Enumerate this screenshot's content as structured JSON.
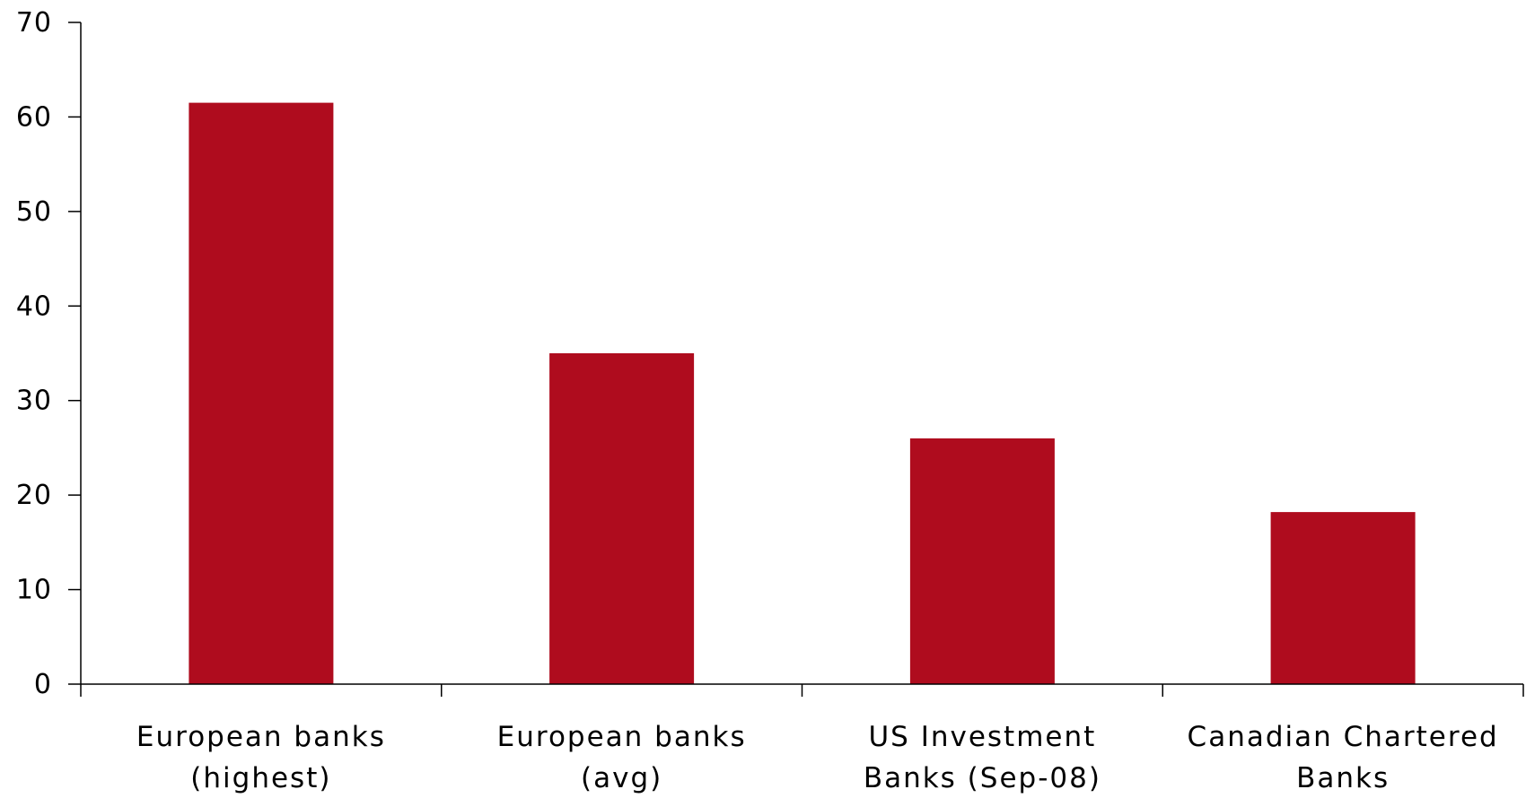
{
  "chart_data": {
    "type": "bar",
    "categories": [
      [
        "European banks",
        "(highest)"
      ],
      [
        "European banks",
        "(avg)"
      ],
      [
        "US Investment",
        "Banks (Sep-08)"
      ],
      [
        "Canadian Chartered",
        "Banks"
      ]
    ],
    "values": [
      61.5,
      35,
      26,
      18.2
    ],
    "ylim": [
      0,
      70
    ],
    "yticks": [
      0,
      10,
      20,
      30,
      40,
      50,
      60,
      70
    ],
    "title": "",
    "xlabel": "",
    "ylabel": "",
    "grid": false,
    "legend": "none",
    "bar_color": "#AF0C1E",
    "axis_color": "#000000"
  }
}
